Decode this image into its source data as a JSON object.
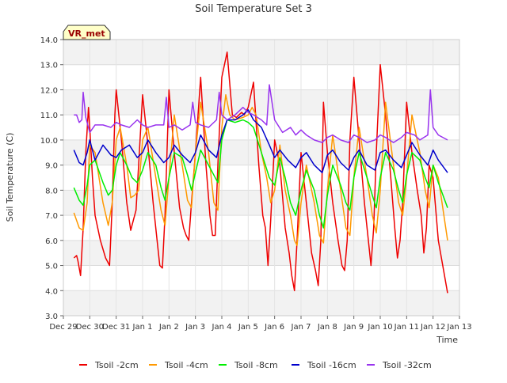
{
  "chart_data": {
    "type": "line",
    "title": "Soil Temperature Set 3",
    "xlabel": "Time",
    "ylabel": "Soil Temperature (C)",
    "badge": "VR_met",
    "ylim": [
      3.0,
      14.0
    ],
    "xlim": [
      0,
      15
    ],
    "y_ticks": [
      "3.0",
      "4.0",
      "5.0",
      "6.0",
      "7.0",
      "8.0",
      "9.0",
      "10.0",
      "11.0",
      "12.0",
      "13.0",
      "14.0"
    ],
    "x_ticks": [
      "Dec 29",
      "Dec 30",
      "Dec 31",
      "Jan 1",
      "Jan 2",
      "Jan 3",
      "Jan 4",
      "Jan 5",
      "Jan 6",
      "Jan 7",
      "Jan 8",
      "Jan 9",
      "Jan 10",
      "Jan 11",
      "Jan 12",
      "Jan 13"
    ],
    "grid": true,
    "legend_position": "bottom",
    "series": [
      {
        "name": "Tsoil -2cm",
        "color": "#ee0000",
        "x": [
          0.4,
          0.5,
          0.55,
          0.65,
          0.75,
          0.85,
          0.95,
          1.0,
          1.1,
          1.2,
          1.4,
          1.6,
          1.75,
          1.85,
          1.95,
          2.0,
          2.2,
          2.4,
          2.55,
          2.65,
          2.75,
          2.85,
          3.0,
          3.2,
          3.4,
          3.55,
          3.65,
          3.75,
          3.85,
          4.0,
          4.2,
          4.4,
          4.55,
          4.65,
          4.75,
          4.85,
          5.0,
          5.2,
          5.4,
          5.55,
          5.65,
          5.75,
          5.85,
          6.0,
          6.2,
          6.4,
          6.55,
          6.65,
          6.75,
          6.85,
          7.0,
          7.2,
          7.4,
          7.55,
          7.65,
          7.75,
          7.85,
          8.0,
          8.2,
          8.4,
          8.55,
          8.65,
          8.75,
          8.85,
          9.0,
          9.2,
          9.4,
          9.55,
          9.65,
          9.75,
          9.85,
          10.0,
          10.2,
          10.4,
          10.55,
          10.65,
          10.75,
          10.85,
          11.0,
          11.2,
          11.4,
          11.55,
          11.65,
          11.75,
          11.85,
          12.0,
          12.2,
          12.4,
          12.55,
          12.65,
          12.75,
          12.85,
          13.0,
          13.2,
          13.4,
          13.55,
          13.65,
          13.75,
          13.85,
          14.0,
          14.2,
          14.4,
          14.55
        ],
        "y": [
          5.3,
          5.4,
          5.2,
          4.6,
          6.5,
          9.5,
          11.3,
          10.5,
          8.5,
          7.0,
          6.0,
          5.3,
          5.0,
          7.5,
          11.0,
          12.0,
          10.0,
          7.5,
          6.4,
          6.8,
          7.2,
          9.0,
          11.8,
          9.8,
          7.5,
          6.0,
          5.0,
          4.9,
          7.0,
          12.0,
          9.5,
          7.3,
          6.5,
          6.2,
          6.0,
          7.5,
          9.5,
          12.5,
          9.0,
          7.0,
          6.2,
          6.2,
          9.0,
          12.5,
          13.5,
          11.0,
          10.9,
          11.0,
          11.1,
          11.0,
          11.3,
          12.3,
          9.0,
          7.0,
          6.5,
          5.0,
          6.8,
          10.0,
          9.0,
          6.5,
          5.5,
          4.6,
          4.0,
          6.0,
          9.5,
          7.5,
          5.5,
          4.8,
          4.2,
          6.0,
          11.5,
          9.5,
          7.5,
          6.0,
          5.0,
          4.8,
          6.0,
          10.0,
          12.5,
          10.0,
          7.5,
          6.0,
          5.0,
          6.5,
          9.5,
          13.0,
          11.0,
          8.5,
          6.5,
          5.3,
          6.0,
          7.5,
          11.5,
          9.5,
          8.0,
          7.0,
          5.5,
          6.5,
          9.0,
          8.5,
          6.0,
          4.8,
          3.9
        ]
      },
      {
        "name": "Tsoil -4cm",
        "color": "#ff9900",
        "x": [
          0.4,
          0.6,
          0.75,
          0.9,
          1.0,
          1.2,
          1.5,
          1.7,
          1.85,
          2.0,
          2.15,
          2.4,
          2.55,
          2.7,
          2.85,
          3.0,
          3.2,
          3.5,
          3.7,
          3.85,
          4.0,
          4.2,
          4.5,
          4.7,
          4.85,
          5.0,
          5.2,
          5.5,
          5.7,
          5.85,
          6.0,
          6.15,
          6.3,
          6.5,
          6.8,
          7.0,
          7.15,
          7.3,
          7.5,
          7.7,
          7.85,
          8.0,
          8.2,
          8.4,
          8.6,
          8.75,
          8.85,
          9.0,
          9.2,
          9.5,
          9.7,
          9.85,
          10.0,
          10.2,
          10.5,
          10.7,
          10.85,
          11.0,
          11.2,
          11.5,
          11.7,
          11.85,
          12.0,
          12.2,
          12.5,
          12.7,
          12.85,
          13.0,
          13.2,
          13.5,
          13.7,
          13.85,
          14.0,
          14.2,
          14.55
        ],
        "y": [
          7.1,
          6.5,
          6.4,
          7.5,
          9.8,
          9.5,
          7.5,
          6.6,
          7.5,
          10.0,
          10.5,
          9.0,
          7.7,
          7.8,
          8.0,
          10.0,
          10.5,
          8.5,
          7.2,
          6.6,
          8.5,
          11.0,
          9.0,
          7.6,
          7.3,
          9.5,
          11.5,
          9.5,
          7.5,
          7.2,
          10.5,
          11.8,
          11.0,
          10.8,
          10.9,
          11.0,
          11.3,
          11.0,
          9.5,
          8.5,
          7.5,
          8.0,
          9.8,
          8.0,
          7.0,
          6.0,
          5.8,
          7.5,
          9.0,
          7.5,
          6.2,
          5.9,
          8.0,
          10.2,
          8.0,
          6.5,
          6.2,
          8.5,
          10.5,
          8.5,
          7.0,
          6.3,
          8.0,
          11.5,
          9.0,
          7.5,
          7.0,
          8.5,
          11.0,
          9.5,
          8.0,
          7.3,
          9.0,
          8.5,
          6.0
        ]
      },
      {
        "name": "Tsoil -8cm",
        "color": "#00ee00",
        "x": [
          0.4,
          0.6,
          0.75,
          0.9,
          1.0,
          1.2,
          1.5,
          1.7,
          1.85,
          2.0,
          2.15,
          2.4,
          2.6,
          2.8,
          3.0,
          3.2,
          3.5,
          3.7,
          3.85,
          4.0,
          4.2,
          4.5,
          4.7,
          4.85,
          5.0,
          5.2,
          5.5,
          5.7,
          5.85,
          6.0,
          6.2,
          6.5,
          6.8,
          7.0,
          7.2,
          7.5,
          7.8,
          8.0,
          8.2,
          8.4,
          8.6,
          8.8,
          9.0,
          9.2,
          9.5,
          9.7,
          9.85,
          10.0,
          10.2,
          10.5,
          10.7,
          10.85,
          11.0,
          11.2,
          11.5,
          11.7,
          11.85,
          12.0,
          12.2,
          12.5,
          12.7,
          12.85,
          13.0,
          13.2,
          13.5,
          13.7,
          13.85,
          14.0,
          14.2,
          14.55
        ],
        "y": [
          8.1,
          7.6,
          7.4,
          8.2,
          9.0,
          9.2,
          8.3,
          7.8,
          8.0,
          9.0,
          9.5,
          9.0,
          8.5,
          8.3,
          8.8,
          9.5,
          9.0,
          8.1,
          7.6,
          8.5,
          9.5,
          9.3,
          8.6,
          8.0,
          8.7,
          9.6,
          9.0,
          8.6,
          8.3,
          10.0,
          10.8,
          10.7,
          10.8,
          10.7,
          10.5,
          9.5,
          8.5,
          8.2,
          9.3,
          8.5,
          7.5,
          7.0,
          8.0,
          8.8,
          8.0,
          7.0,
          6.5,
          7.8,
          9.0,
          8.2,
          7.5,
          7.2,
          8.5,
          9.5,
          8.5,
          7.8,
          7.3,
          8.5,
          9.5,
          8.8,
          8.0,
          7.5,
          8.6,
          9.5,
          9.2,
          8.5,
          8.1,
          9.0,
          8.3,
          7.3
        ]
      },
      {
        "name": "Tsoil -16cm",
        "color": "#0000cc",
        "x": [
          0.4,
          0.6,
          0.75,
          0.9,
          1.0,
          1.2,
          1.5,
          1.8,
          2.0,
          2.2,
          2.5,
          2.8,
          3.0,
          3.2,
          3.5,
          3.8,
          4.0,
          4.2,
          4.5,
          4.8,
          5.0,
          5.2,
          5.5,
          5.8,
          6.0,
          6.2,
          6.5,
          6.8,
          7.0,
          7.2,
          7.5,
          7.8,
          8.0,
          8.2,
          8.5,
          8.8,
          9.0,
          9.2,
          9.5,
          9.8,
          10.0,
          10.2,
          10.5,
          10.8,
          11.0,
          11.2,
          11.5,
          11.8,
          12.0,
          12.2,
          12.5,
          12.8,
          13.0,
          13.2,
          13.5,
          13.8,
          14.0,
          14.2,
          14.55
        ],
        "y": [
          9.6,
          9.1,
          9.0,
          9.5,
          10.0,
          9.2,
          9.8,
          9.4,
          9.3,
          9.6,
          9.8,
          9.3,
          9.5,
          10.0,
          9.5,
          9.1,
          9.3,
          9.8,
          9.4,
          9.1,
          9.5,
          10.2,
          9.6,
          9.3,
          10.2,
          10.8,
          10.8,
          11.0,
          11.2,
          10.8,
          10.5,
          9.8,
          9.3,
          9.6,
          9.2,
          8.9,
          9.3,
          9.5,
          9.0,
          8.7,
          9.4,
          9.6,
          9.1,
          8.8,
          9.3,
          9.6,
          9.0,
          8.8,
          9.5,
          9.6,
          9.2,
          8.9,
          9.4,
          9.9,
          9.4,
          9.0,
          9.6,
          9.2,
          8.7
        ]
      },
      {
        "name": "Tsoil -32cm",
        "color": "#9933ee",
        "x": [
          0.4,
          0.5,
          0.6,
          0.7,
          0.75,
          0.85,
          1.0,
          1.2,
          1.5,
          1.8,
          2.0,
          2.2,
          2.5,
          2.8,
          3.0,
          3.2,
          3.5,
          3.8,
          3.9,
          4.0,
          4.2,
          4.5,
          4.8,
          4.9,
          5.0,
          5.2,
          5.5,
          5.8,
          5.9,
          6.0,
          6.2,
          6.5,
          6.8,
          7.0,
          7.2,
          7.5,
          7.7,
          7.8,
          8.0,
          8.3,
          8.6,
          8.8,
          9.0,
          9.2,
          9.5,
          9.8,
          10.0,
          10.2,
          10.5,
          10.8,
          11.0,
          11.2,
          11.5,
          11.8,
          12.0,
          12.2,
          12.5,
          12.8,
          13.0,
          13.3,
          13.5,
          13.8,
          13.9,
          14.0,
          14.2,
          14.55
        ],
        "y": [
          11.0,
          11.0,
          10.7,
          10.8,
          11.9,
          10.9,
          10.3,
          10.6,
          10.6,
          10.5,
          10.7,
          10.6,
          10.5,
          10.8,
          10.6,
          10.5,
          10.6,
          10.6,
          11.7,
          10.5,
          10.6,
          10.4,
          10.6,
          11.5,
          10.7,
          10.6,
          10.5,
          10.8,
          11.9,
          11.0,
          10.8,
          11.0,
          11.3,
          11.1,
          11.0,
          10.8,
          10.6,
          12.2,
          10.8,
          10.3,
          10.5,
          10.2,
          10.4,
          10.2,
          10.0,
          9.9,
          10.1,
          10.2,
          10.0,
          9.9,
          10.2,
          10.1,
          9.9,
          10.0,
          10.2,
          10.1,
          9.9,
          10.1,
          10.3,
          10.2,
          10.0,
          10.2,
          12.0,
          10.5,
          10.2,
          10.0
        ]
      }
    ]
  }
}
